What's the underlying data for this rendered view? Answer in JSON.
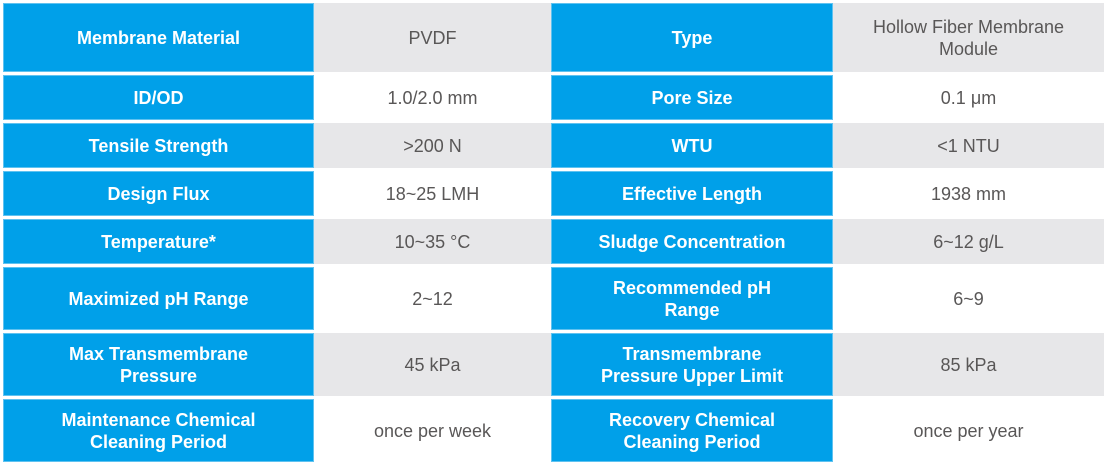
{
  "colors": {
    "accent": "#00a0e9",
    "accent_edge": "#5fc2f0",
    "value_alt_bg": "#e7e7e9",
    "value_bg": "#ffffff",
    "value_text": "#595757",
    "label_text": "#ffffff"
  },
  "table": {
    "rows": [
      {
        "left_label": "Membrane Material",
        "left_value": "PVDF",
        "right_label": "Type",
        "right_value": "Hollow Fiber Membrane\nModule"
      },
      {
        "left_label": "ID/OD",
        "left_value": "1.0/2.0 mm",
        "right_label": "Pore Size",
        "right_value": "0.1 μm"
      },
      {
        "left_label": "Tensile Strength",
        "left_value": ">200 N",
        "right_label": "WTU",
        "right_value": "<1 NTU"
      },
      {
        "left_label": "Design Flux",
        "left_value": "18~25 LMH",
        "right_label": "Effective Length",
        "right_value": "1938 mm"
      },
      {
        "left_label": "Temperature*",
        "left_value": "10~35 °C",
        "right_label": "Sludge Concentration",
        "right_value": "6~12 g/L"
      },
      {
        "left_label": "Maximized pH Range",
        "left_value": "2~12",
        "right_label": "Recommended pH\nRange",
        "right_value": "6~9"
      },
      {
        "left_label": "Max Transmembrane\nPressure",
        "left_value": "45 kPa",
        "right_label": "Transmembrane\nPressure Upper Limit",
        "right_value": "85 kPa"
      },
      {
        "left_label": "Maintenance Chemical\nCleaning Period",
        "left_value": "once per week",
        "right_label": "Recovery Chemical\nCleaning Period",
        "right_value": "once per year"
      }
    ]
  }
}
